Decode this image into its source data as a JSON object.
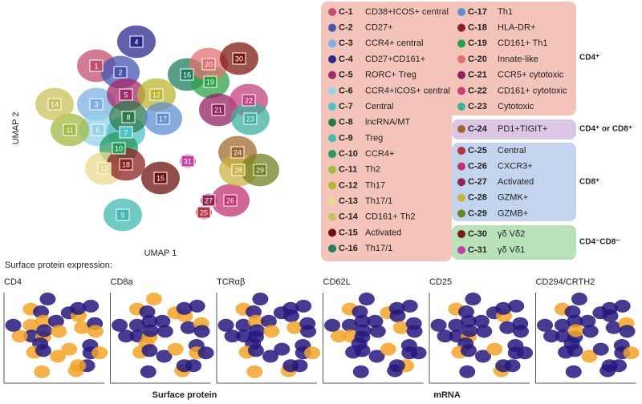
{
  "umap": {
    "x_label": "UMAP 1",
    "y_label": "UMAP 2",
    "cluster_labels": [
      "1",
      "2",
      "3",
      "4",
      "5",
      "6",
      "7",
      "8",
      "9",
      "10",
      "11",
      "12",
      "13",
      "14",
      "15",
      "16",
      "17",
      "18",
      "19",
      "20",
      "21",
      "22",
      "23",
      "24",
      "25",
      "26",
      "27",
      "28",
      "29",
      "30",
      "31"
    ]
  },
  "legend": {
    "groups": [
      {
        "name": "CD4⁺",
        "color": "#f4c4ba",
        "items": [
          {
            "id": "C-1",
            "label": "CD38+ICOS+ central",
            "color": "#c24f70"
          },
          {
            "id": "C-2",
            "label": "CD27+",
            "color": "#4656b0"
          },
          {
            "id": "C-3",
            "label": "CCR4+ central",
            "color": "#7cb2e2"
          },
          {
            "id": "C-4",
            "label": "CD27+CD161+",
            "color": "#2b2a8c"
          },
          {
            "id": "C-5",
            "label": "RORC+ Treg",
            "color": "#a32a6c"
          },
          {
            "id": "C-6",
            "label": "CCR4+ICOS+ central",
            "color": "#92d2ea"
          },
          {
            "id": "C-7",
            "label": "Central",
            "color": "#4fc2c6"
          },
          {
            "id": "C-8",
            "label": "lncRNA/MT",
            "color": "#2e7a4c"
          },
          {
            "id": "C-9",
            "label": "Treg",
            "color": "#42b9b2"
          },
          {
            "id": "C-10",
            "label": "CCR4+",
            "color": "#279a5e"
          },
          {
            "id": "C-11",
            "label": "Th2",
            "color": "#9fbb42"
          },
          {
            "id": "C-12",
            "label": "Th17",
            "color": "#b9b532"
          },
          {
            "id": "C-13",
            "label": "Th17/1",
            "color": "#ead98e"
          },
          {
            "id": "C-14",
            "label": "CD161+ Th2",
            "color": "#c9c15e"
          },
          {
            "id": "C-15",
            "label": "Activated",
            "color": "#6b1210"
          },
          {
            "id": "C-16",
            "label": "Th17/1",
            "color": "#1f7f5e"
          },
          {
            "id": "C-17",
            "label": "Th1",
            "color": "#5f8fd2"
          },
          {
            "id": "C-18",
            "label": "HLA-DR+",
            "color": "#8b2220"
          },
          {
            "id": "C-19",
            "label": "CD161+ Th1",
            "color": "#2fa144"
          },
          {
            "id": "C-20",
            "label": "Innate-like",
            "color": "#e17272"
          },
          {
            "id": "C-21",
            "label": "CCR5+ cytotoxic",
            "color": "#912262"
          },
          {
            "id": "C-22",
            "label": "CD161+ cytotoxic",
            "color": "#c2417e"
          },
          {
            "id": "C-23",
            "label": "Cytotoxic",
            "color": "#3fb09f"
          }
        ]
      },
      {
        "name": "CD4⁺ or CD8⁺",
        "color": "#dcc6e6",
        "items": [
          {
            "id": "C-24",
            "label": "PD1+TIGIT+",
            "color": "#a16a32"
          }
        ]
      },
      {
        "name": "CD8⁺",
        "color": "#c3d5ee",
        "items": [
          {
            "id": "C-25",
            "label": "Central",
            "color": "#b23242"
          },
          {
            "id": "C-26",
            "label": "CXCR3+",
            "color": "#c23272"
          },
          {
            "id": "C-27",
            "label": "Activated",
            "color": "#922252"
          },
          {
            "id": "C-28",
            "label": "GZMK+",
            "color": "#c9b242"
          },
          {
            "id": "C-29",
            "label": "GZMB+",
            "color": "#718122"
          }
        ]
      },
      {
        "name": "CD4⁻CD8⁻",
        "color": "#b9e2ba",
        "items": [
          {
            "id": "C-30",
            "label": "γδ Vδ2",
            "color": "#7b1b12"
          },
          {
            "id": "C-31",
            "label": "γδ Vδ1",
            "color": "#c242a2"
          }
        ]
      }
    ]
  },
  "surface": {
    "title": "Surface protein expression:",
    "base_color": "#26197e",
    "accent_color": "#f3a52a",
    "panels": [
      "CD4",
      "CD8a",
      "TCRαβ",
      "CD62L",
      "CD25",
      "CD294/CRTH2"
    ]
  },
  "footer": {
    "left": "Surface protein",
    "right": "mRNA"
  }
}
